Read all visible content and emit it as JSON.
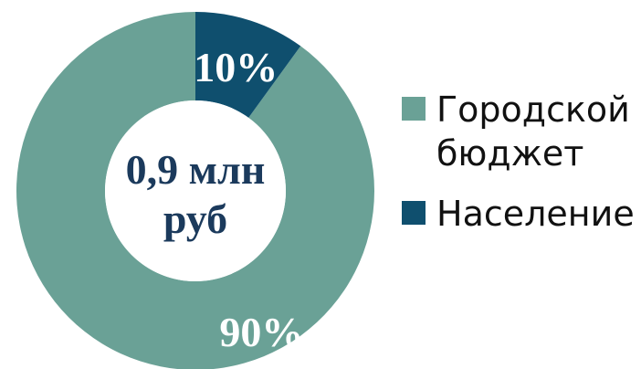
{
  "chart_data": {
    "type": "pie",
    "variant": "donut",
    "categories": [
      "Городской бюджет",
      "Население"
    ],
    "values": [
      90,
      10
    ],
    "unit": "%",
    "data_labels": [
      "90%",
      "10%"
    ],
    "colors": [
      "#6aa196",
      "#0f4f6e"
    ],
    "center_text": [
      "0,9 млн",
      "руб"
    ],
    "legend_position": "right"
  }
}
